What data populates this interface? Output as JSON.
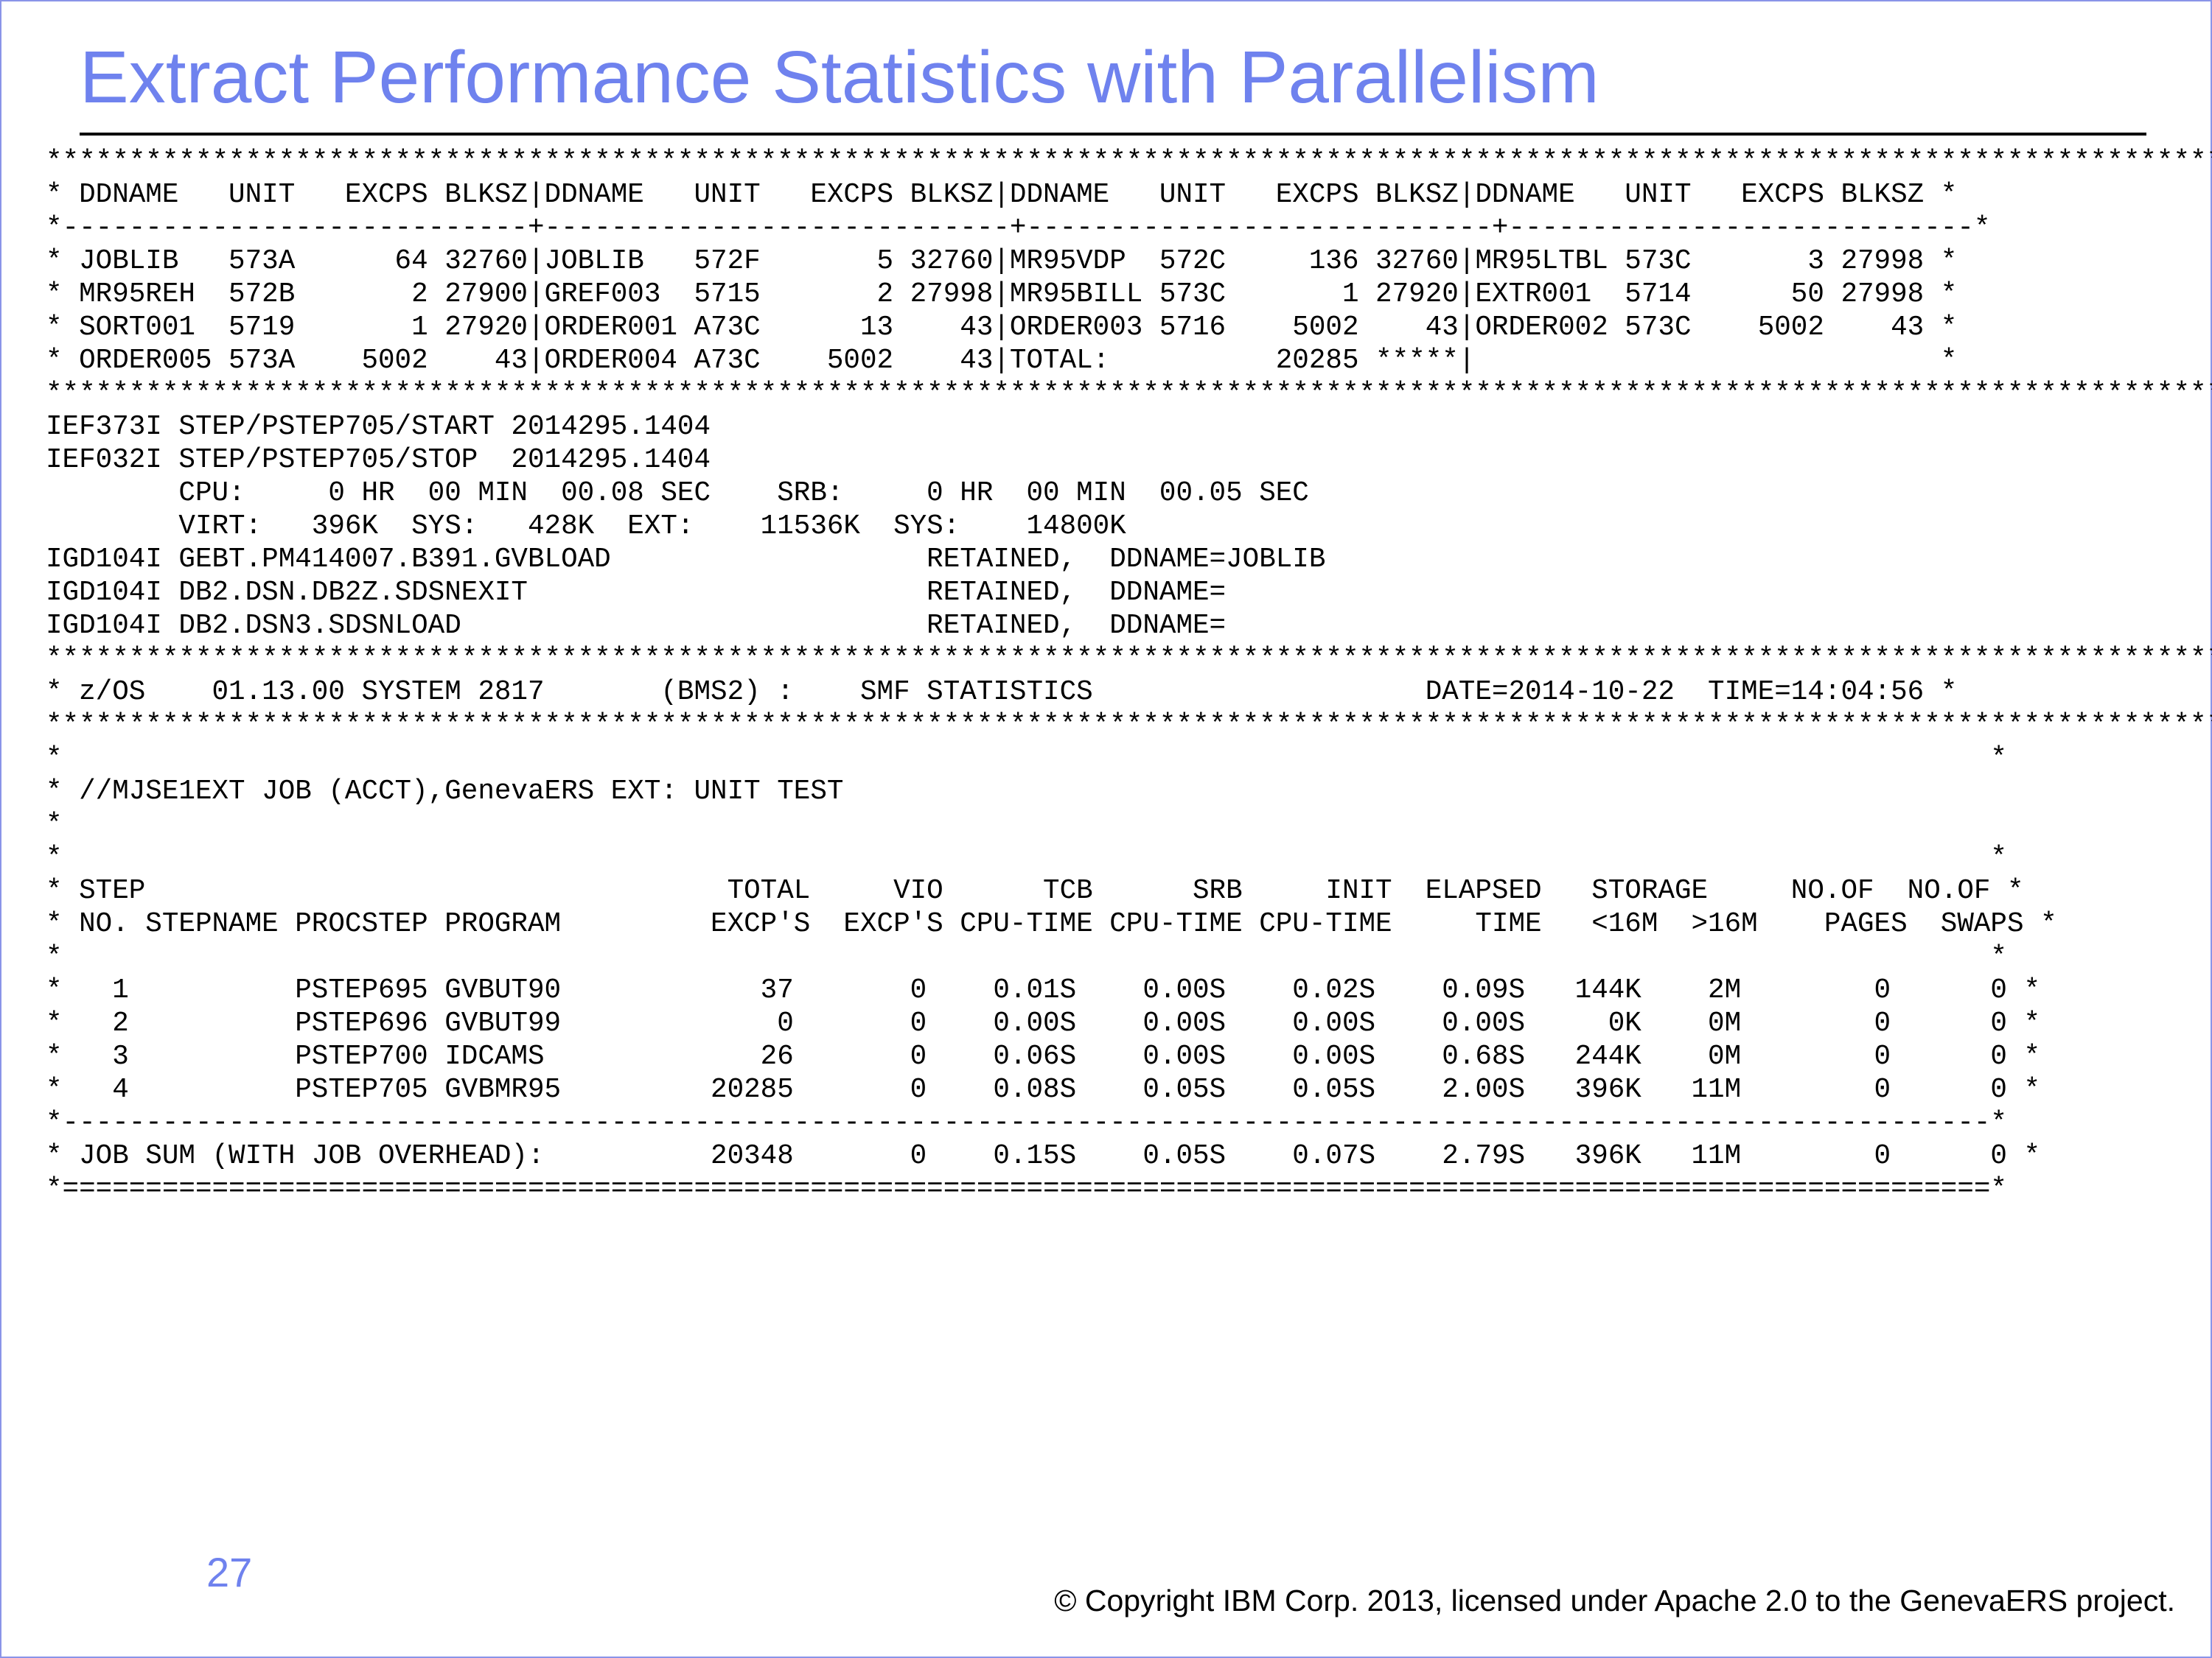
{
  "slide": {
    "title": "Extract Performance Statistics with Parallelism",
    "page_number": "27",
    "copyright": "© Copyright IBM Corp. 2013, licensed under Apache 2.0 to the GenevaERS project."
  },
  "listing": {
    "lines": [
      "*****************************************************************************************************************************************",
      "* DDNAME   UNIT   EXCPS BLKSZ|DDNAME   UNIT   EXCPS BLKSZ|DDNAME   UNIT   EXCPS BLKSZ|DDNAME   UNIT   EXCPS BLKSZ *",
      "*----------------------------+----------------------------+----------------------------+----------------------------*",
      "* JOBLIB   573A      64 32760|JOBLIB   572F       5 32760|MR95VDP  572C     136 32760|MR95LTBL 573C       3 27998 *",
      "* MR95REH  572B       2 27900|GREF003  5715       2 27998|MR95BILL 573C       1 27920|EXTR001  5714      50 27998 *",
      "* SORT001  5719       1 27920|ORDER001 A73C      13    43|ORDER003 5716    5002    43|ORDER002 573C    5002    43 *",
      "* ORDER005 573A    5002    43|ORDER004 A73C    5002    43|TOTAL:          20285 *****|                            *",
      "*****************************************************************************************************************************************",
      "IEF373I STEP/PSTEP705/START 2014295.1404",
      "IEF032I STEP/PSTEP705/STOP  2014295.1404",
      "        CPU:     0 HR  00 MIN  00.08 SEC    SRB:     0 HR  00 MIN  00.05 SEC",
      "        VIRT:   396K  SYS:   428K  EXT:    11536K  SYS:    14800K",
      "IGD104I GEBT.PM414007.B391.GVBLOAD                   RETAINED,  DDNAME=JOBLIB",
      "IGD104I DB2.DSN.DB2Z.SDSNEXIT                        RETAINED,  DDNAME=",
      "IGD104I DB2.DSN3.SDSNLOAD                            RETAINED,  DDNAME=",
      "*****************************************************************************************************************************************",
      "* z/OS    01.13.00 SYSTEM 2817       (BMS2) :    SMF STATISTICS                    DATE=2014-10-22  TIME=14:04:56 *",
      "*****************************************************************************************************************************************",
      "*                                                                                                                    *",
      "* //MJSE1EXT JOB (ACCT),GenevaERS EXT: UNIT TEST",
      "*",
      "*                                                                                                                    *",
      "* STEP                                   TOTAL     VIO      TCB      SRB     INIT  ELAPSED   STORAGE     NO.OF  NO.OF *",
      "* NO. STEPNAME PROCSTEP PROGRAM         EXCP'S  EXCP'S CPU-TIME CPU-TIME CPU-TIME     TIME   <16M  >16M    PAGES  SWAPS *",
      "*                                                                                                                    *",
      "*   1          PSTEP695 GVBUT90            37       0    0.01S    0.00S    0.02S    0.09S   144K    2M        0      0 *",
      "*   2          PSTEP696 GVBUT99             0       0    0.00S    0.00S    0.00S    0.00S     0K    0M        0      0 *",
      "*   3          PSTEP700 IDCAMS             26       0    0.06S    0.00S    0.00S    0.68S   244K    0M        0      0 *",
      "*   4          PSTEP705 GVBMR95         20285       0    0.08S    0.05S    0.05S    2.00S   396K   11M        0      0 *",
      "*--------------------------------------------------------------------------------------------------------------------*",
      "* JOB SUM (WITH JOB OVERHEAD):          20348       0    0.15S    0.05S    0.07S    2.79S   396K   11M        0      0 *",
      "*====================================================================================================================*"
    ]
  }
}
